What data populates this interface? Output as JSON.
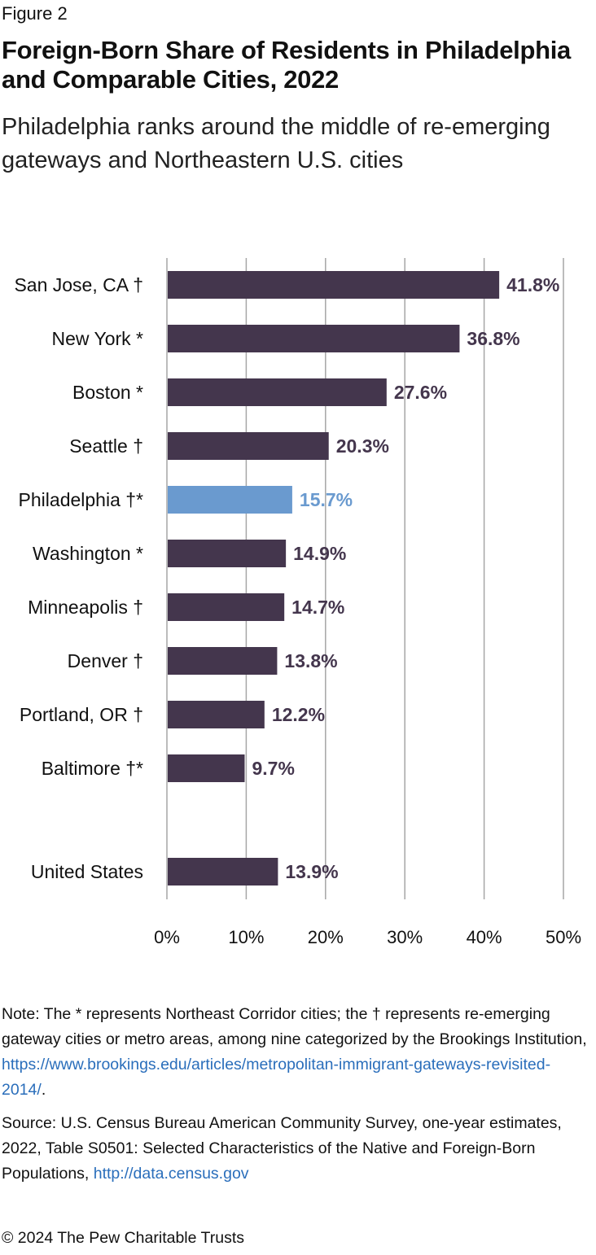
{
  "figure_label": "Figure 2",
  "title": "Foreign-Born Share of Residents in Philadelphia and Comparable Cities, 2022",
  "subtitle": "Philadelphia ranks around the middle of re-emerging gateways and Northeastern U.S. cities",
  "colors": {
    "bar": "#44364d",
    "highlight": "#6a9acf",
    "grid": "#a6a6a6",
    "link": "#2a6ebb"
  },
  "chart_data": {
    "type": "bar",
    "orientation": "horizontal",
    "categories": [
      "San Jose, CA †",
      "New York *",
      "Boston *",
      "Seattle †",
      "Philadelphia †*",
      "Washington *",
      "Minneapolis †",
      "Denver †",
      "Portland, OR †",
      "Baltimore †*",
      "United States"
    ],
    "values": [
      41.8,
      36.8,
      27.6,
      20.3,
      15.7,
      14.9,
      14.7,
      13.8,
      12.2,
      9.7,
      13.9
    ],
    "value_labels": [
      "41.8%",
      "36.8%",
      "27.6%",
      "20.3%",
      "15.7%",
      "14.9%",
      "14.7%",
      "13.8%",
      "12.2%",
      "9.7%",
      "13.9%"
    ],
    "highlight": "Philadelphia †*",
    "xlim": [
      0,
      50
    ],
    "xticks": [
      "0%",
      "10%",
      "20%",
      "30%",
      "40%",
      "50%"
    ],
    "grid": true,
    "xlabel": "",
    "ylabel": ""
  },
  "notes": {
    "note_text": "Note: The * represents Northeast Corridor cities; the † represents re-emerging gateway cities or metro areas, among nine categorized by the Brookings Institution,",
    "note_link": "https://www.brookings.edu/articles/metropolitan-immigrant-gateways-revisited-2014/",
    "note_end": ".",
    "source_text": "Source: U.S. Census Bureau American Community Survey, one-year estimates, 2022, Table S0501: Selected Characteristics of the Native and Foreign-Born Populations,",
    "source_link": "http://data.census.gov"
  },
  "copyright": "© 2024 The Pew Charitable Trusts"
}
